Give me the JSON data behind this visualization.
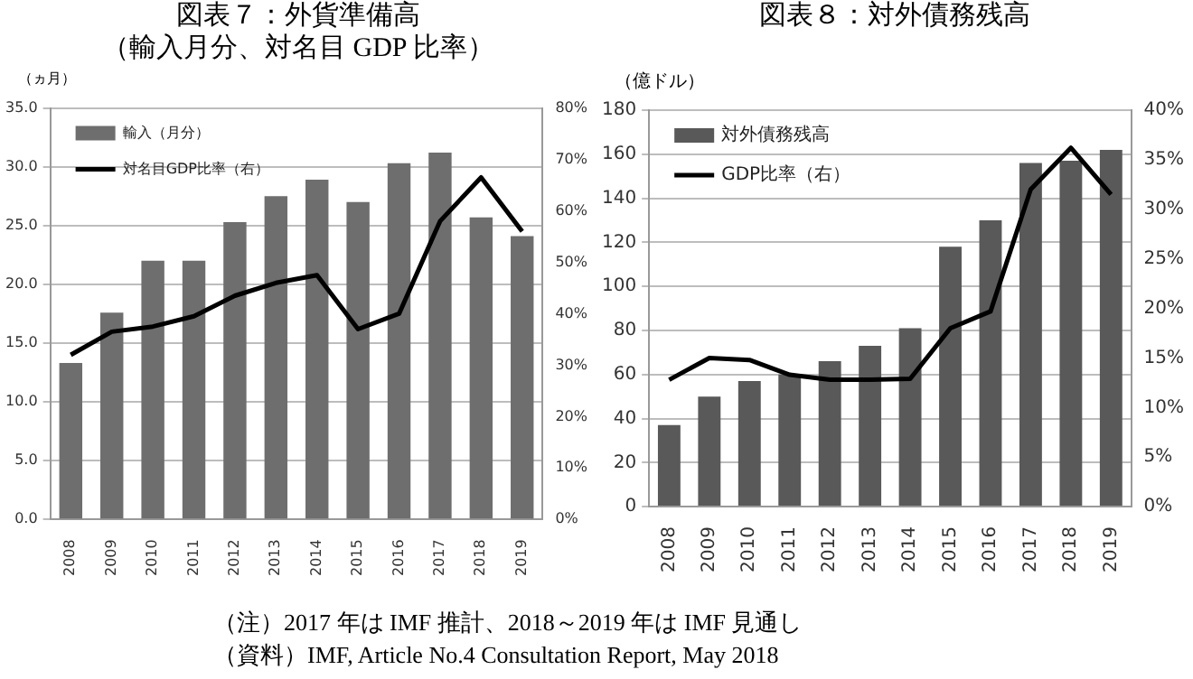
{
  "chart_data": [
    {
      "type": "bar",
      "title": "図表７：外貨準備高",
      "subtitle": "（輸入月分、対名目 GDP 比率）",
      "ylabel": "（ヵ月）",
      "categories": [
        "2008",
        "2009",
        "2010",
        "2011",
        "2012",
        "2013",
        "2014",
        "2015",
        "2016",
        "2017",
        "2018",
        "2019"
      ],
      "series": [
        {
          "name": "輸入（月分）",
          "color": "#6e6e6e",
          "values": [
            13.3,
            17.6,
            22.0,
            22.0,
            25.3,
            27.5,
            28.9,
            27.0,
            30.3,
            31.2,
            25.7,
            24.1
          ]
        },
        {
          "name": "対名目GDP比率（右）",
          "type": "line",
          "axis": "y2",
          "color": "#000000",
          "values": [
            32,
            36.5,
            37.5,
            39.5,
            43.5,
            46,
            47.5,
            37,
            40,
            58,
            66.5,
            56
          ]
        }
      ],
      "ylim": [
        0,
        35
      ],
      "yticks": [
        {
          "value": 0,
          "label": "0.0"
        },
        {
          "value": 5,
          "label": "5.0"
        },
        {
          "value": 10,
          "label": "10.0"
        },
        {
          "value": 15,
          "label": "15.0"
        },
        {
          "value": 20,
          "label": "20.0"
        },
        {
          "value": 25,
          "label": "25.0"
        },
        {
          "value": 30,
          "label": "30.0"
        },
        {
          "value": 35,
          "label": "35.0"
        }
      ],
      "y2lim": [
        0,
        80
      ],
      "y2ticks": [
        {
          "value": 0,
          "label": "0%"
        },
        {
          "value": 10,
          "label": "10%"
        },
        {
          "value": 20,
          "label": "20%"
        },
        {
          "value": 30,
          "label": "30%"
        },
        {
          "value": 40,
          "label": "40%"
        },
        {
          "value": 50,
          "label": "50%"
        },
        {
          "value": 60,
          "label": "60%"
        },
        {
          "value": 70,
          "label": "70%"
        },
        {
          "value": 80,
          "label": "80%"
        }
      ],
      "grid": "y",
      "legend": "top left",
      "marker": "none"
    },
    {
      "type": "bar",
      "title": "図表８：対外債務残高",
      "ylabel": "（億ドル）",
      "categories": [
        "2008",
        "2009",
        "2010",
        "2011",
        "2012",
        "2013",
        "2014",
        "2015",
        "2016",
        "2017",
        "2018",
        "2019"
      ],
      "series": [
        {
          "name": "対外債務残高",
          "color": "#595959",
          "values": [
            37,
            50,
            57,
            60,
            66,
            73,
            81,
            118,
            130,
            156,
            157,
            162
          ]
        },
        {
          "name": "GDP比率（右）",
          "type": "line",
          "axis": "y2",
          "color": "#000000",
          "values": [
            12.8,
            15,
            14.8,
            13.3,
            12.8,
            12.8,
            12.9,
            18,
            19.7,
            32,
            36.2,
            31.5
          ]
        }
      ],
      "ylim": [
        0,
        180
      ],
      "yticks": [
        0,
        20,
        40,
        60,
        80,
        100,
        120,
        140,
        160,
        180
      ],
      "y2lim": [
        0,
        40
      ],
      "y2ticks": [
        {
          "value": 0,
          "label": "0%"
        },
        {
          "value": 5,
          "label": "5%"
        },
        {
          "value": 10,
          "label": "10%"
        },
        {
          "value": 15,
          "label": "15%"
        },
        {
          "value": 20,
          "label": "20%"
        },
        {
          "value": 25,
          "label": "25%"
        },
        {
          "value": 30,
          "label": "30%"
        },
        {
          "value": 35,
          "label": "35%"
        },
        {
          "value": 40,
          "label": "40%"
        }
      ],
      "grid": "y",
      "legend": "top left",
      "marker": "none",
      "annotations": [
        "（注）2017 年は IMF 推計、2018～2019 年は IMF 見通し",
        "（資料）IMF, Article No.4 Consultation Report, May 2018"
      ]
    }
  ]
}
